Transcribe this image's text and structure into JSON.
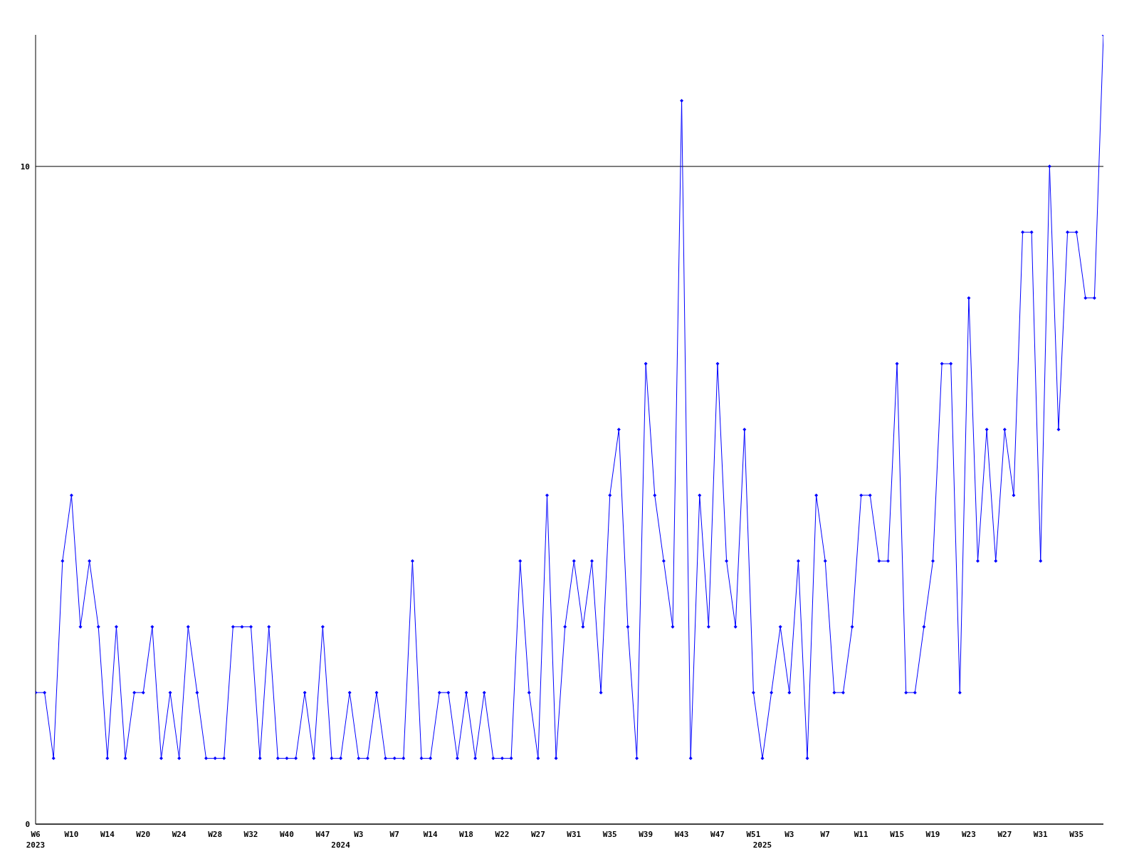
{
  "chart_data": {
    "type": "line",
    "categories": [
      "W6\n2023",
      null,
      null,
      null,
      "W10",
      null,
      null,
      null,
      "W14",
      null,
      null,
      null,
      "W20",
      null,
      null,
      null,
      "W24",
      null,
      null,
      null,
      "W28",
      null,
      null,
      null,
      "W32",
      null,
      null,
      null,
      "W40",
      null,
      null,
      null,
      "W47",
      null,
      "\n2024",
      null,
      "W3",
      null,
      null,
      null,
      "W7",
      null,
      null,
      null,
      "W14",
      null,
      null,
      null,
      "W18",
      null,
      null,
      null,
      "W22",
      null,
      null,
      null,
      "W27",
      null,
      null,
      null,
      "W31",
      null,
      null,
      null,
      "W35",
      null,
      null,
      null,
      "W39",
      null,
      null,
      null,
      "W43",
      null,
      null,
      null,
      "W47",
      null,
      null,
      null,
      "W51",
      "\n2025",
      null,
      null,
      "W3",
      null,
      null,
      null,
      "W7",
      null,
      null,
      null,
      "W11",
      null,
      null,
      null,
      "W15",
      null,
      null,
      null,
      "W19",
      null,
      null,
      null,
      "W23",
      null,
      null,
      null,
      "W27",
      null,
      null,
      null,
      "W31",
      null,
      null,
      null,
      "W35",
      null,
      null,
      null
    ],
    "series": [
      {
        "color": "#0000ff",
        "values": [
          2,
          2,
          1,
          4,
          5,
          3,
          4,
          3,
          1,
          3,
          1,
          2,
          2,
          3,
          1,
          2,
          1,
          3,
          2,
          1,
          1,
          1,
          3,
          3,
          3,
          1,
          3,
          1,
          1,
          1,
          2,
          1,
          3,
          1,
          1,
          2,
          1,
          1,
          2,
          1,
          1,
          1,
          4,
          1,
          1,
          2,
          2,
          1,
          2,
          1,
          2,
          1,
          1,
          1,
          4,
          2,
          1,
          5,
          1,
          3,
          4,
          3,
          4,
          2,
          5,
          6,
          3,
          1,
          7,
          5,
          4,
          3,
          11,
          1,
          5,
          3,
          7,
          4,
          3,
          6,
          2,
          1,
          2,
          3,
          2,
          4,
          1,
          5,
          4,
          2,
          2,
          3,
          5,
          5,
          4,
          4,
          7,
          2,
          2,
          3,
          4,
          7,
          7,
          2,
          8,
          4,
          6,
          4,
          6,
          5,
          9,
          9,
          4,
          10,
          6,
          9,
          9,
          8,
          8,
          12
        ]
      }
    ],
    "ylim": [
      0,
      12
    ],
    "yticks": [
      0,
      10
    ],
    "grid": "y",
    "marker": "diamond",
    "line_style": "solid"
  }
}
